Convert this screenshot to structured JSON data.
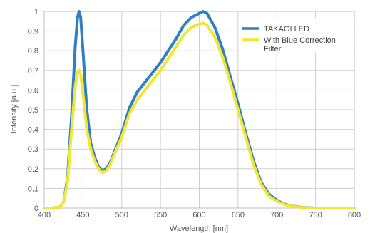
{
  "chart_data": {
    "type": "line",
    "xlabel": "Wavelength [nm]",
    "ylabel": "Intensity [a.u.]",
    "xlim": [
      400,
      800
    ],
    "ylim": [
      0,
      1
    ],
    "x_ticks": [
      "400",
      "450",
      "500",
      "550",
      "600",
      "650",
      "700",
      "750",
      "800"
    ],
    "y_ticks": [
      "0",
      "0.1",
      "0.2",
      "0.3",
      "0.4",
      "0.5",
      "0.6",
      "0.7",
      "0.8",
      "0.9",
      "1"
    ],
    "grid": true,
    "legend_position": "top-right",
    "series": [
      {
        "name": "TAKAGI LED",
        "color": "#2f7fc1",
        "points": [
          [
            400,
            0
          ],
          [
            410,
            0
          ],
          [
            420,
            0.005
          ],
          [
            425,
            0.03
          ],
          [
            430,
            0.15
          ],
          [
            435,
            0.45
          ],
          [
            440,
            0.82
          ],
          [
            443,
            0.97
          ],
          [
            445,
            1.0
          ],
          [
            447,
            0.97
          ],
          [
            450,
            0.8
          ],
          [
            455,
            0.5
          ],
          [
            460,
            0.33
          ],
          [
            465,
            0.26
          ],
          [
            470,
            0.21
          ],
          [
            475,
            0.19
          ],
          [
            480,
            0.2
          ],
          [
            485,
            0.23
          ],
          [
            490,
            0.28
          ],
          [
            500,
            0.38
          ],
          [
            510,
            0.51
          ],
          [
            520,
            0.59
          ],
          [
            530,
            0.64
          ],
          [
            540,
            0.69
          ],
          [
            550,
            0.74
          ],
          [
            560,
            0.8
          ],
          [
            570,
            0.86
          ],
          [
            580,
            0.93
          ],
          [
            590,
            0.97
          ],
          [
            600,
            0.99
          ],
          [
            605,
            1.0
          ],
          [
            610,
            0.99
          ],
          [
            620,
            0.92
          ],
          [
            630,
            0.81
          ],
          [
            640,
            0.67
          ],
          [
            650,
            0.53
          ],
          [
            660,
            0.38
          ],
          [
            670,
            0.24
          ],
          [
            680,
            0.13
          ],
          [
            690,
            0.07
          ],
          [
            700,
            0.04
          ],
          [
            710,
            0.02
          ],
          [
            720,
            0.01
          ],
          [
            730,
            0.005
          ],
          [
            740,
            0.002
          ],
          [
            750,
            0
          ],
          [
            760,
            0
          ],
          [
            780,
            0
          ],
          [
            800,
            0
          ]
        ]
      },
      {
        "name": "With Blue Correction Filter",
        "color": "#f2e632",
        "points": [
          [
            400,
            0
          ],
          [
            410,
            0
          ],
          [
            420,
            0.005
          ],
          [
            425,
            0.03
          ],
          [
            430,
            0.13
          ],
          [
            435,
            0.38
          ],
          [
            440,
            0.62
          ],
          [
            443,
            0.69
          ],
          [
            445,
            0.7
          ],
          [
            447,
            0.68
          ],
          [
            450,
            0.58
          ],
          [
            455,
            0.4
          ],
          [
            460,
            0.3
          ],
          [
            465,
            0.24
          ],
          [
            470,
            0.2
          ],
          [
            475,
            0.18
          ],
          [
            480,
            0.19
          ],
          [
            485,
            0.22
          ],
          [
            490,
            0.27
          ],
          [
            500,
            0.36
          ],
          [
            510,
            0.48
          ],
          [
            520,
            0.55
          ],
          [
            530,
            0.6
          ],
          [
            540,
            0.65
          ],
          [
            550,
            0.7
          ],
          [
            560,
            0.76
          ],
          [
            570,
            0.82
          ],
          [
            580,
            0.88
          ],
          [
            590,
            0.92
          ],
          [
            600,
            0.935
          ],
          [
            605,
            0.94
          ],
          [
            610,
            0.93
          ],
          [
            620,
            0.87
          ],
          [
            630,
            0.77
          ],
          [
            640,
            0.64
          ],
          [
            650,
            0.5
          ],
          [
            660,
            0.36
          ],
          [
            670,
            0.22
          ],
          [
            680,
            0.12
          ],
          [
            690,
            0.06
          ],
          [
            700,
            0.035
          ],
          [
            710,
            0.018
          ],
          [
            720,
            0.009
          ],
          [
            730,
            0.004
          ],
          [
            740,
            0.001
          ],
          [
            750,
            0
          ],
          [
            760,
            0
          ],
          [
            780,
            0
          ],
          [
            800,
            0
          ]
        ]
      }
    ]
  }
}
